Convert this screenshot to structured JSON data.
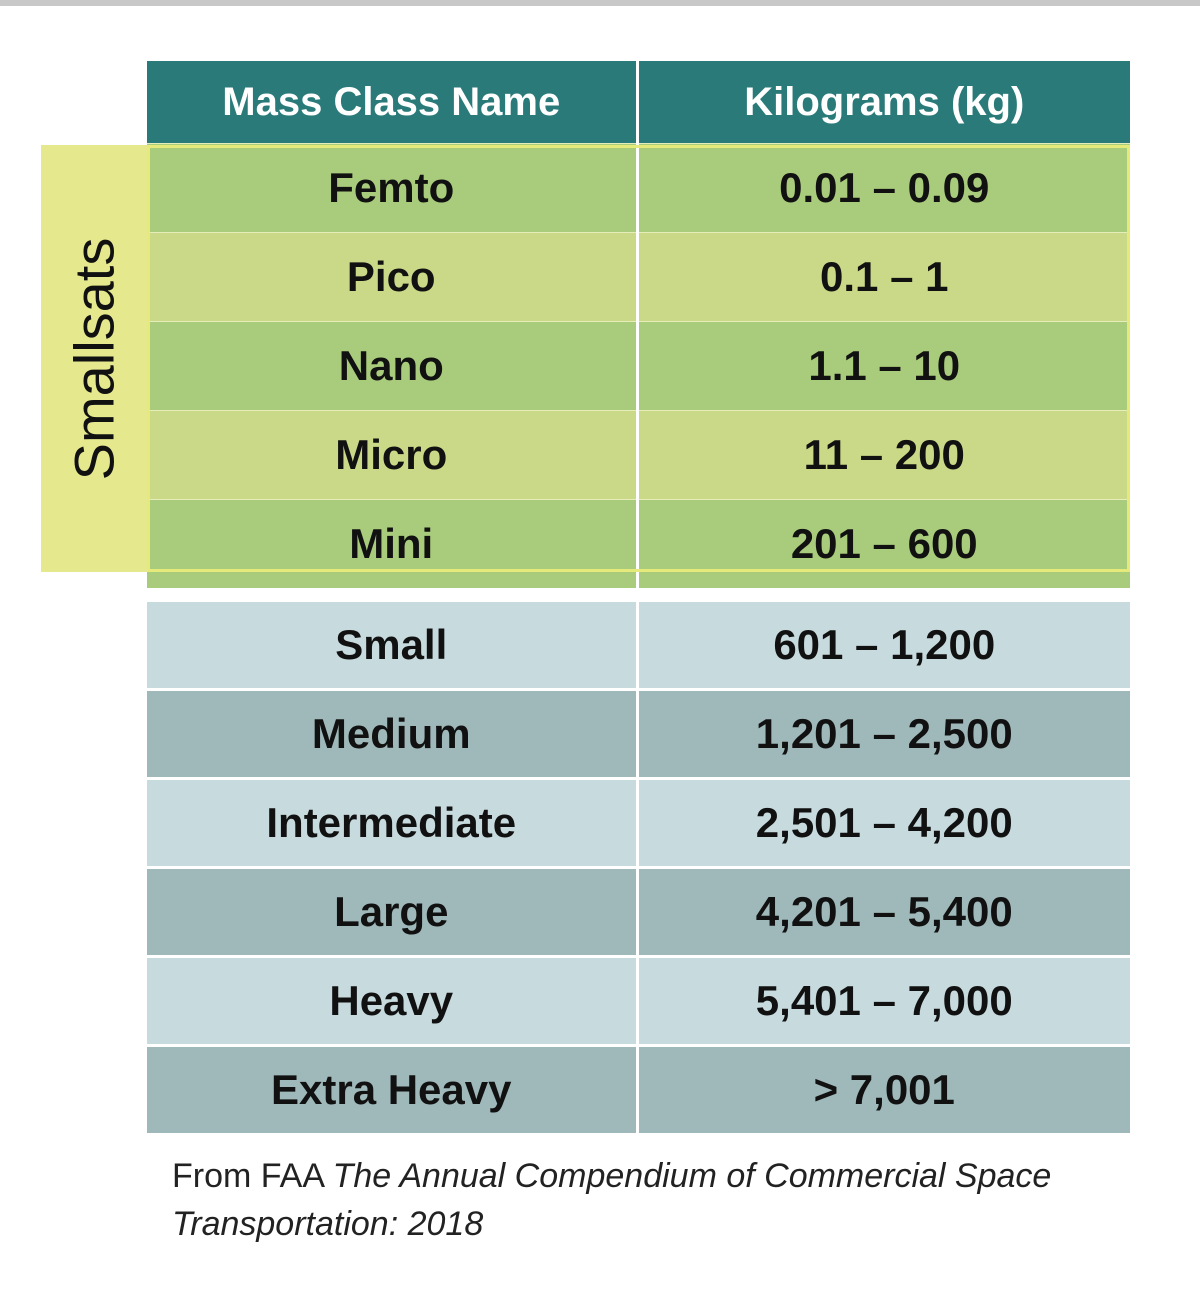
{
  "table": {
    "headers": [
      "Mass Class Name",
      "Kilograms (kg)"
    ],
    "group_label": "Smallsats",
    "smallsat_rows": [
      {
        "name": "Femto",
        "range": "0.01 – 0.09"
      },
      {
        "name": "Pico",
        "range": "0.1 – 1"
      },
      {
        "name": "Nano",
        "range": "1.1 – 10"
      },
      {
        "name": "Micro",
        "range": "11 – 200"
      },
      {
        "name": "Mini",
        "range": "201 – 600"
      }
    ],
    "large_rows": [
      {
        "name": "Small",
        "range": "601 – 1,200"
      },
      {
        "name": "Medium",
        "range": "1,201 – 2,500"
      },
      {
        "name": "Intermediate",
        "range": "2,501 – 4,200"
      },
      {
        "name": "Large",
        "range": "4,201 – 5,400"
      },
      {
        "name": "Heavy",
        "range": "5,401 – 7,000"
      },
      {
        "name": "Extra Heavy",
        "range": "> 7,001"
      }
    ]
  },
  "caption": {
    "prefix": "From FAA ",
    "title": "The Annual Compendium of Commercial Space Transportation: 2018"
  }
}
